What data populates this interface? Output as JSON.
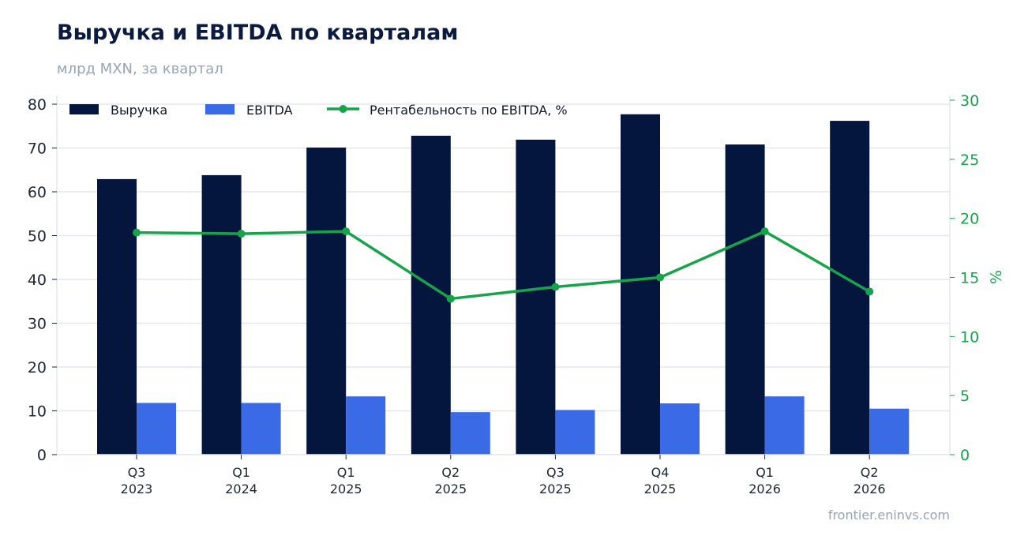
{
  "header": {
    "title": "Выручка и EBITDA по кварталам",
    "subtitle": "млрд MXN, за квартал"
  },
  "footer": {
    "source": "frontier.eninvs.com"
  },
  "colors": {
    "revenue": "#05163e",
    "ebitda": "#3b6ae6",
    "margin": "#16a34a",
    "grid": "#e4e7ee"
  },
  "chart_data": {
    "type": "bar",
    "categories": [
      [
        "Q3",
        "2023"
      ],
      [
        "Q1",
        "2024"
      ],
      [
        "Q1",
        "2025"
      ],
      [
        "Q2",
        "2025"
      ],
      [
        "Q3",
        "2025"
      ],
      [
        "Q4",
        "2025"
      ],
      [
        "Q1",
        "2026"
      ],
      [
        "Q2",
        "2026"
      ]
    ],
    "series": [
      {
        "name": "Выручка",
        "type": "bar",
        "axis": "left",
        "values": [
          62.9,
          63.8,
          70.1,
          72.8,
          71.9,
          77.7,
          70.8,
          76.2
        ]
      },
      {
        "name": "EBITDA",
        "type": "bar",
        "axis": "left",
        "values": [
          11.8,
          11.8,
          13.3,
          9.7,
          10.2,
          11.7,
          13.3,
          10.5
        ]
      },
      {
        "name": "Рентабельность по EBITDA, %",
        "type": "line",
        "axis": "right",
        "values": [
          18.8,
          18.7,
          18.9,
          13.2,
          14.2,
          15.0,
          18.9,
          13.8
        ]
      }
    ],
    "y_left": {
      "min": 0,
      "max": 80,
      "ticks": [
        0,
        10,
        20,
        30,
        40,
        50,
        60,
        70,
        80
      ],
      "label": ""
    },
    "y_right": {
      "min": 0,
      "max": 30,
      "ticks": [
        0,
        5,
        10,
        15,
        20,
        25,
        30
      ],
      "label": "%"
    },
    "grid": true,
    "legend_position": "top-left"
  }
}
